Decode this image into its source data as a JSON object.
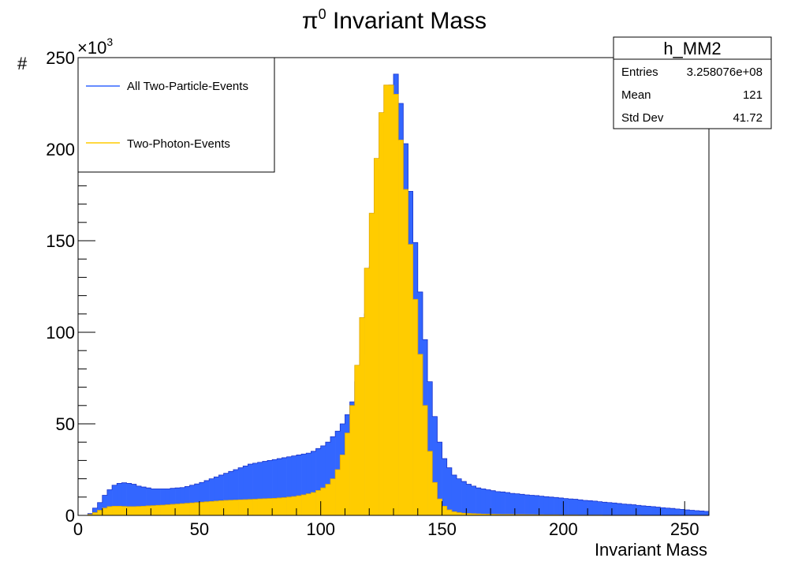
{
  "chart_data": {
    "type": "bar",
    "title_symbol": "π",
    "title_sup": "0",
    "title_text": " Invariant Mass",
    "xlabel": "Invariant Mass",
    "ylabel": "#",
    "y_multiplier_base": "×10",
    "y_multiplier_exp": "3",
    "xlim": [
      0,
      260
    ],
    "ylim": [
      0,
      250000
    ],
    "x_ticks": [
      0,
      50,
      100,
      150,
      200,
      250
    ],
    "y_ticks": [
      0,
      50,
      100,
      150,
      200,
      250
    ],
    "bin_width": 2,
    "legend": {
      "placement": "top-left",
      "entries": [
        {
          "label": "All Two-Particle-Events",
          "color": "#3366ff"
        },
        {
          "label": "Two-Photon-Events",
          "color": "#ffcc00"
        }
      ]
    },
    "stats_box": {
      "title": "h_MM2",
      "rows": [
        {
          "label": "Entries",
          "value": "3.258076e+08"
        },
        {
          "label": "Mean",
          "value": "121"
        },
        {
          "label": "Std Dev",
          "value": "41.72"
        }
      ]
    },
    "series": [
      {
        "name": "All Two-Particle-Events",
        "color": "#3366ff",
        "values": [
          0,
          0,
          1000,
          4000,
          7000,
          11000,
          14000,
          16500,
          17500,
          17800,
          17500,
          17000,
          16000,
          15500,
          15000,
          14500,
          14500,
          14500,
          14500,
          14800,
          15000,
          15200,
          15800,
          16500,
          17200,
          18000,
          19000,
          20000,
          21000,
          22000,
          23000,
          24000,
          25000,
          26000,
          27000,
          28000,
          28500,
          29000,
          29500,
          30000,
          30500,
          31000,
          31500,
          32000,
          32500,
          33000,
          33500,
          34000,
          35000,
          36500,
          38000,
          40000,
          43000,
          46000,
          50000,
          55000,
          62000,
          73000,
          88000,
          110000,
          136000,
          162000,
          189000,
          214000,
          235000,
          241000,
          225000,
          203000,
          177000,
          149000,
          122000,
          96000,
          73000,
          54000,
          40000,
          31000,
          26000,
          22000,
          20000,
          18500,
          17000,
          16000,
          15000,
          14500,
          14000,
          13500,
          13000,
          12800,
          12500,
          12000,
          11800,
          11500,
          11200,
          11000,
          10800,
          10500,
          10200,
          10000,
          9800,
          9500,
          9200,
          9000,
          8800,
          8500,
          8200,
          8000,
          7800,
          7500,
          7200,
          7000,
          6800,
          6500,
          6200,
          6000,
          5800,
          5500,
          5200,
          5000,
          4800,
          4500,
          4200,
          4000,
          3800,
          3500,
          3300,
          3000,
          2800,
          2600,
          2400,
          2200
        ]
      },
      {
        "name": "Two-Photon-Events",
        "color": "#ffcc00",
        "values": [
          0,
          0,
          500,
          1500,
          2800,
          4000,
          4800,
          5000,
          5000,
          4900,
          4800,
          4800,
          4900,
          5000,
          5200,
          5300,
          5500,
          5600,
          5800,
          6000,
          6200,
          6400,
          6600,
          6800,
          7000,
          7200,
          7400,
          7600,
          7800,
          8000,
          8200,
          8300,
          8400,
          8500,
          8600,
          8700,
          8800,
          9000,
          9100,
          9200,
          9300,
          9500,
          9700,
          10000,
          10300,
          10700,
          11200,
          11800,
          12500,
          13600,
          15000,
          17000,
          20000,
          25000,
          33000,
          45000,
          60000,
          82000,
          108000,
          135000,
          165000,
          195000,
          220000,
          235000,
          235000,
          230000,
          205000,
          178000,
          148000,
          118000,
          88000,
          60000,
          35000,
          18000,
          9000,
          5000,
          3000,
          2000,
          1500,
          1200,
          1000,
          900,
          800,
          700,
          650,
          600,
          550,
          500,
          480,
          450,
          420,
          400,
          380,
          350,
          330,
          300,
          280,
          260,
          240,
          220,
          200,
          190,
          180,
          170,
          160,
          150,
          140,
          130,
          120,
          110,
          100,
          95,
          90,
          85,
          80,
          75,
          70,
          65,
          60,
          55,
          50,
          45,
          40,
          38,
          35,
          32,
          30,
          28,
          25,
          22
        ]
      }
    ]
  }
}
